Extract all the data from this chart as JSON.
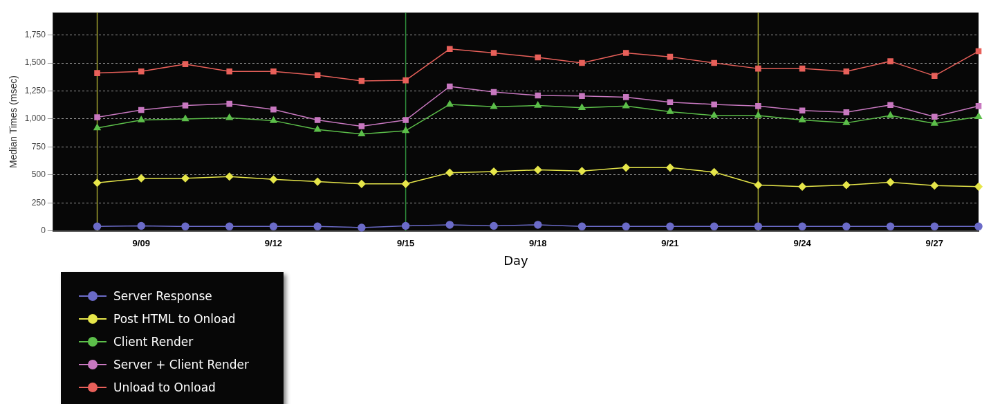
{
  "chart_data": {
    "type": "line",
    "xlabel": "Day",
    "ylabel": "Median Times (msec)",
    "x": [
      "--09-08",
      "--09-09",
      "--09-10",
      "--09-11",
      "--09-12",
      "--09-13",
      "--09-14",
      "--09-15",
      "--09-16",
      "--09-17",
      "--09-18",
      "--09-19",
      "--09-20",
      "--09-21",
      "--09-22",
      "--09-23",
      "--09-24",
      "--09-25",
      "--09-26",
      "--09-27",
      "--09-28"
    ],
    "series": [
      {
        "name": "Server Response",
        "color": "#6b6bc8",
        "marker": "circle",
        "values": [
          40,
          45,
          40,
          40,
          40,
          40,
          30,
          45,
          55,
          45,
          55,
          40,
          40,
          40,
          40,
          40,
          40,
          40,
          40,
          40,
          40
        ]
      },
      {
        "name": "Post HTML to Onload",
        "color": "#e6e64a",
        "marker": "diamond",
        "values": [
          430,
          470,
          470,
          485,
          460,
          440,
          420,
          420,
          520,
          530,
          545,
          535,
          565,
          565,
          525,
          410,
          395,
          410,
          435,
          405,
          395
        ]
      },
      {
        "name": "Client Render",
        "color": "#5cbf4a",
        "marker": "triangle",
        "values": [
          920,
          990,
          1000,
          1010,
          985,
          905,
          865,
          895,
          1130,
          1110,
          1120,
          1100,
          1115,
          1065,
          1030,
          1030,
          990,
          965,
          1030,
          960,
          1020
        ]
      },
      {
        "name": "Server + Client Render",
        "color": "#c878c0",
        "marker": "square",
        "values": [
          1015,
          1080,
          1120,
          1135,
          1085,
          990,
          935,
          990,
          1290,
          1240,
          1210,
          1205,
          1195,
          1150,
          1130,
          1115,
          1075,
          1060,
          1125,
          1020,
          1115
        ]
      },
      {
        "name": "Unload to Onload",
        "color": "#e8605a",
        "marker": "square",
        "values": [
          1410,
          1425,
          1490,
          1425,
          1425,
          1390,
          1340,
          1345,
          1625,
          1590,
          1550,
          1500,
          1590,
          1555,
          1500,
          1450,
          1450,
          1425,
          1515,
          1385,
          1605
        ]
      }
    ],
    "xlim": [
      "--09-07",
      "--09-28"
    ],
    "xticks": [
      {
        "value": "--09-09",
        "label": "9/09"
      },
      {
        "value": "--09-12",
        "label": "9/12"
      },
      {
        "value": "--09-15",
        "label": "9/15"
      },
      {
        "value": "--09-18",
        "label": "9/18"
      },
      {
        "value": "--09-21",
        "label": "9/21"
      },
      {
        "value": "--09-24",
        "label": "9/24"
      },
      {
        "value": "--09-27",
        "label": "9/27"
      }
    ],
    "ylim": [
      0,
      1950
    ],
    "yticks": [
      0,
      250,
      500,
      750,
      {
        "value": 1000,
        "label": "1,000"
      },
      {
        "value": 1250,
        "label": "1,250"
      },
      {
        "value": 1500,
        "label": "1,500"
      },
      {
        "value": 1750,
        "label": "1,750"
      }
    ],
    "ref_lines": [
      {
        "axis": "x",
        "value": "--09-08",
        "color": "#a0a030"
      },
      {
        "axis": "x",
        "value": "--09-15",
        "color": "#2e8b3a"
      },
      {
        "axis": "x",
        "value": "--09-23",
        "color": "#a0a030"
      }
    ],
    "grid": "y",
    "legend": "bottom left",
    "line_style": "solid"
  }
}
